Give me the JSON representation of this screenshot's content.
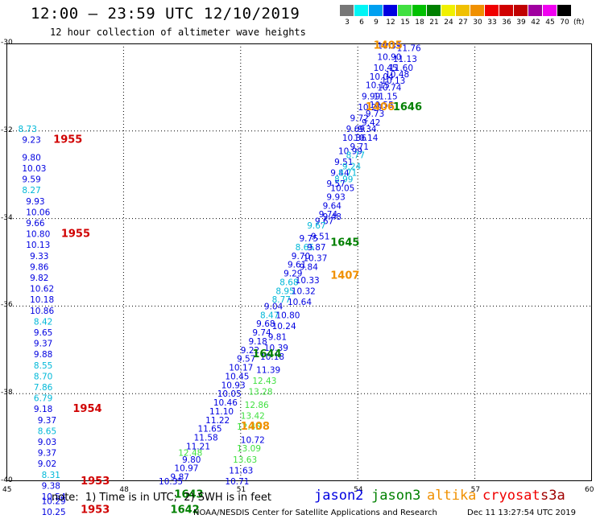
{
  "title": "12:00 – 23:59 UTC 12/10/2019",
  "subtitle": "12 hour collection of altimeter wave heights",
  "scale": {
    "labels": [
      "3",
      "6",
      "9",
      "12",
      "15",
      "18",
      "21",
      "24",
      "27",
      "30",
      "33",
      "36",
      "39",
      "42",
      "45",
      "70"
    ],
    "unit": "(ft)",
    "colors": [
      "#777777",
      "#00f5f5",
      "#00a0f0",
      "#0000e0",
      "#40e040",
      "#00c000",
      "#008000",
      "#f0f000",
      "#f0c000",
      "#f09000",
      "#f00000",
      "#d00000",
      "#c00000",
      "#a000a0",
      "#f000f0",
      "#000000"
    ]
  },
  "axes": {
    "y_labels": [
      "-30",
      "-32",
      "-34",
      "-36",
      "-38",
      "-40"
    ],
    "x_labels": [
      "45",
      "48",
      "51",
      "54",
      "57",
      "60"
    ]
  },
  "chart_data": {
    "type": "scatter",
    "xlim": [
      45,
      60
    ],
    "ylim": [
      -40,
      -30
    ],
    "grid": true,
    "points": [
      {
        "lon": 54.5,
        "lat": -30.05,
        "v": "10.39",
        "c": "b"
      },
      {
        "lon": 54.5,
        "lat": -30.3,
        "v": "10.90",
        "c": "b"
      },
      {
        "lon": 54.9,
        "lat": -30.35,
        "v": "11.13",
        "c": "b"
      },
      {
        "lon": 55.0,
        "lat": -30.1,
        "v": "11.76",
        "c": "b"
      },
      {
        "lon": 54.4,
        "lat": -30.55,
        "v": "10.45",
        "c": "b"
      },
      {
        "lon": 54.8,
        "lat": -30.55,
        "v": "11.60",
        "c": "b"
      },
      {
        "lon": 54.3,
        "lat": -30.75,
        "v": "10.04",
        "c": "b"
      },
      {
        "lon": 54.7,
        "lat": -30.7,
        "v": "10.48",
        "c": "b"
      },
      {
        "lon": 54.6,
        "lat": -30.85,
        "v": "10.13",
        "c": "b"
      },
      {
        "lon": 54.2,
        "lat": -30.95,
        "v": "10.15",
        "c": "b"
      },
      {
        "lon": 54.5,
        "lat": -31.0,
        "v": "10.74",
        "c": "b"
      },
      {
        "lon": 54.1,
        "lat": -31.2,
        "v": "9.99",
        "c": "b"
      },
      {
        "lon": 54.4,
        "lat": -31.2,
        "v": "11.15",
        "c": "b"
      },
      {
        "lon": 54.0,
        "lat": -31.45,
        "v": "10.29",
        "c": "b"
      },
      {
        "lon": 54.3,
        "lat": -31.4,
        "v": "10.55",
        "c": "b"
      },
      {
        "lon": 54.2,
        "lat": -31.6,
        "v": "9.73",
        "c": "b"
      },
      {
        "lon": 53.8,
        "lat": -31.7,
        "v": "9.72",
        "c": "b"
      },
      {
        "lon": 54.1,
        "lat": -31.8,
        "v": "9.42",
        "c": "b"
      },
      {
        "lon": 53.7,
        "lat": -31.95,
        "v": "9.69",
        "c": "b"
      },
      {
        "lon": 54.0,
        "lat": -31.95,
        "v": "9.34",
        "c": "b"
      },
      {
        "lon": 53.6,
        "lat": -32.15,
        "v": "10.36",
        "c": "b"
      },
      {
        "lon": 53.9,
        "lat": -32.15,
        "v": "10.14",
        "c": "b"
      },
      {
        "lon": 53.8,
        "lat": -32.35,
        "v": "9.71",
        "c": "b"
      },
      {
        "lon": 53.5,
        "lat": -32.45,
        "v": "10.99",
        "c": "b"
      },
      {
        "lon": 53.7,
        "lat": -32.55,
        "v": "8.77",
        "c": "c"
      },
      {
        "lon": 53.4,
        "lat": -32.7,
        "v": "9.51",
        "c": "b"
      },
      {
        "lon": 53.6,
        "lat": -32.8,
        "v": "9.24",
        "c": "c"
      },
      {
        "lon": 53.3,
        "lat": -32.95,
        "v": "9.44",
        "c": "b"
      },
      {
        "lon": 53.5,
        "lat": -32.95,
        "v": "8.71",
        "c": "c"
      },
      {
        "lon": 53.4,
        "lat": -33.1,
        "v": "8.99",
        "c": "c"
      },
      {
        "lon": 53.2,
        "lat": -33.2,
        "v": "9.57",
        "c": "b"
      },
      {
        "lon": 53.3,
        "lat": -33.3,
        "v": "10.05",
        "c": "b"
      },
      {
        "lon": 53.2,
        "lat": -33.5,
        "v": "9.93",
        "c": "b"
      },
      {
        "lon": 53.1,
        "lat": -33.7,
        "v": "9.64",
        "c": "b"
      },
      {
        "lon": 53.0,
        "lat": -33.9,
        "v": "9.74",
        "c": "b"
      },
      {
        "lon": 53.1,
        "lat": -33.95,
        "v": "9.48",
        "c": "b"
      },
      {
        "lon": 52.9,
        "lat": -34.05,
        "v": "9.67",
        "c": "b"
      },
      {
        "lon": 52.7,
        "lat": -34.15,
        "v": "9.67",
        "c": "c"
      },
      {
        "lon": 52.5,
        "lat": -34.45,
        "v": "9.75",
        "c": "b"
      },
      {
        "lon": 52.8,
        "lat": -34.4,
        "v": "9.51",
        "c": "b"
      },
      {
        "lon": 52.4,
        "lat": -34.65,
        "v": "8.65",
        "c": "c"
      },
      {
        "lon": 52.7,
        "lat": -34.65,
        "v": "9.87",
        "c": "b"
      },
      {
        "lon": 52.3,
        "lat": -34.85,
        "v": "9.70",
        "c": "b"
      },
      {
        "lon": 52.6,
        "lat": -34.9,
        "v": "10.37",
        "c": "b"
      },
      {
        "lon": 52.2,
        "lat": -35.05,
        "v": "9.61",
        "c": "b"
      },
      {
        "lon": 52.5,
        "lat": -35.1,
        "v": "9.84",
        "c": "b"
      },
      {
        "lon": 52.1,
        "lat": -35.25,
        "v": "9.29",
        "c": "b"
      },
      {
        "lon": 52.0,
        "lat": -35.45,
        "v": "8.68",
        "c": "c"
      },
      {
        "lon": 52.4,
        "lat": -35.4,
        "v": "10.33",
        "c": "b"
      },
      {
        "lon": 51.9,
        "lat": -35.65,
        "v": "8.95",
        "c": "c"
      },
      {
        "lon": 52.3,
        "lat": -35.65,
        "v": "10.32",
        "c": "b"
      },
      {
        "lon": 51.8,
        "lat": -35.85,
        "v": "8.77",
        "c": "c"
      },
      {
        "lon": 52.2,
        "lat": -35.9,
        "v": "10.64",
        "c": "b"
      },
      {
        "lon": 51.6,
        "lat": -36.0,
        "v": "9.04",
        "c": "b"
      },
      {
        "lon": 51.5,
        "lat": -36.2,
        "v": "8.47",
        "c": "c"
      },
      {
        "lon": 51.9,
        "lat": -36.2,
        "v": "10.80",
        "c": "b"
      },
      {
        "lon": 51.4,
        "lat": -36.4,
        "v": "9.68",
        "c": "b"
      },
      {
        "lon": 51.8,
        "lat": -36.45,
        "v": "10.24",
        "c": "b"
      },
      {
        "lon": 51.3,
        "lat": -36.6,
        "v": "9.74",
        "c": "b"
      },
      {
        "lon": 51.7,
        "lat": -36.7,
        "v": "9.81",
        "c": "b"
      },
      {
        "lon": 51.2,
        "lat": -36.8,
        "v": "9.18",
        "c": "b"
      },
      {
        "lon": 51.6,
        "lat": -36.95,
        "v": "10.39",
        "c": "b"
      },
      {
        "lon": 51.0,
        "lat": -37.0,
        "v": "9.22",
        "c": "b"
      },
      {
        "lon": 51.5,
        "lat": -37.15,
        "v": "10.18",
        "c": "b"
      },
      {
        "lon": 50.9,
        "lat": -37.2,
        "v": "9.57",
        "c": "b"
      },
      {
        "lon": 50.7,
        "lat": -37.4,
        "v": "10.17",
        "c": "b"
      },
      {
        "lon": 51.4,
        "lat": -37.45,
        "v": "11.39",
        "c": "b"
      },
      {
        "lon": 50.6,
        "lat": -37.6,
        "v": "10.45",
        "c": "b"
      },
      {
        "lon": 51.3,
        "lat": -37.7,
        "v": "12.43",
        "c": "g"
      },
      {
        "lon": 50.5,
        "lat": -37.8,
        "v": "10.93",
        "c": "b"
      },
      {
        "lon": 51.2,
        "lat": -37.95,
        "v": "13.28",
        "c": "g"
      },
      {
        "lon": 50.4,
        "lat": -38.0,
        "v": "10.05",
        "c": "b"
      },
      {
        "lon": 50.3,
        "lat": -38.2,
        "v": "10.46",
        "c": "b"
      },
      {
        "lon": 51.1,
        "lat": -38.25,
        "v": "12.86",
        "c": "g"
      },
      {
        "lon": 50.2,
        "lat": -38.4,
        "v": "11.10",
        "c": "b"
      },
      {
        "lon": 51.0,
        "lat": -38.5,
        "v": "13.42",
        "c": "g"
      },
      {
        "lon": 50.1,
        "lat": -38.6,
        "v": "11.22",
        "c": "b"
      },
      {
        "lon": 50.9,
        "lat": -38.75,
        "v": "12.45",
        "c": "g"
      },
      {
        "lon": 49.9,
        "lat": -38.8,
        "v": "11.65",
        "c": "b"
      },
      {
        "lon": 49.8,
        "lat": -39.0,
        "v": "11.58",
        "c": "b"
      },
      {
        "lon": 51.0,
        "lat": -39.05,
        "v": "10.72",
        "c": "b"
      },
      {
        "lon": 49.6,
        "lat": -39.2,
        "v": "11.21",
        "c": "b"
      },
      {
        "lon": 50.9,
        "lat": -39.25,
        "v": "13.09",
        "c": "g"
      },
      {
        "lon": 49.4,
        "lat": -39.35,
        "v": "12.48",
        "c": "g"
      },
      {
        "lon": 49.5,
        "lat": -39.5,
        "v": "9.80",
        "c": "b"
      },
      {
        "lon": 50.8,
        "lat": -39.5,
        "v": "13.63",
        "c": "g"
      },
      {
        "lon": 49.3,
        "lat": -39.7,
        "v": "10.97",
        "c": "b"
      },
      {
        "lon": 50.7,
        "lat": -39.75,
        "v": "11.63",
        "c": "b"
      },
      {
        "lon": 49.2,
        "lat": -39.9,
        "v": "9.87",
        "c": "b"
      },
      {
        "lon": 48.9,
        "lat": -40.0,
        "v": "10.35",
        "c": "b"
      },
      {
        "lon": 50.6,
        "lat": -40.0,
        "v": "10.71",
        "c": "b"
      },
      {
        "lon": 45.3,
        "lat": -31.95,
        "v": "8.73",
        "c": "c"
      },
      {
        "lon": 45.4,
        "lat": -32.2,
        "v": "9.23",
        "c": "b"
      },
      {
        "lon": 45.4,
        "lat": -32.6,
        "v": "9.80",
        "c": "b"
      },
      {
        "lon": 45.4,
        "lat": -32.85,
        "v": "10.03",
        "c": "b"
      },
      {
        "lon": 45.4,
        "lat": -33.1,
        "v": "9.59",
        "c": "b"
      },
      {
        "lon": 45.4,
        "lat": -33.35,
        "v": "8.27",
        "c": "c"
      },
      {
        "lon": 45.5,
        "lat": -33.6,
        "v": "9.93",
        "c": "b"
      },
      {
        "lon": 45.5,
        "lat": -33.85,
        "v": "10.06",
        "c": "b"
      },
      {
        "lon": 45.5,
        "lat": -34.1,
        "v": "9.66",
        "c": "b"
      },
      {
        "lon": 45.5,
        "lat": -34.35,
        "v": "10.80",
        "c": "b"
      },
      {
        "lon": 45.5,
        "lat": -34.6,
        "v": "10.13",
        "c": "b"
      },
      {
        "lon": 45.6,
        "lat": -34.85,
        "v": "9.33",
        "c": "b"
      },
      {
        "lon": 45.6,
        "lat": -35.1,
        "v": "9.86",
        "c": "b"
      },
      {
        "lon": 45.6,
        "lat": -35.35,
        "v": "9.82",
        "c": "b"
      },
      {
        "lon": 45.6,
        "lat": -35.6,
        "v": "10.62",
        "c": "b"
      },
      {
        "lon": 45.6,
        "lat": -35.85,
        "v": "10.18",
        "c": "b"
      },
      {
        "lon": 45.6,
        "lat": -36.1,
        "v": "10.86",
        "c": "b"
      },
      {
        "lon": 45.7,
        "lat": -36.35,
        "v": "8.42",
        "c": "c"
      },
      {
        "lon": 45.7,
        "lat": -36.6,
        "v": "9.65",
        "c": "b"
      },
      {
        "lon": 45.7,
        "lat": -36.85,
        "v": "9.37",
        "c": "b"
      },
      {
        "lon": 45.7,
        "lat": -37.1,
        "v": "9.88",
        "c": "b"
      },
      {
        "lon": 45.7,
        "lat": -37.35,
        "v": "8.55",
        "c": "c"
      },
      {
        "lon": 45.7,
        "lat": -37.6,
        "v": "8.70",
        "c": "c"
      },
      {
        "lon": 45.7,
        "lat": -37.85,
        "v": "7.86",
        "c": "c"
      },
      {
        "lon": 45.7,
        "lat": -38.1,
        "v": "6.79",
        "c": "c"
      },
      {
        "lon": 45.7,
        "lat": -38.35,
        "v": "9.18",
        "c": "b"
      },
      {
        "lon": 45.8,
        "lat": -38.6,
        "v": "9.37",
        "c": "b"
      },
      {
        "lon": 45.8,
        "lat": -38.85,
        "v": "8.65",
        "c": "c"
      },
      {
        "lon": 45.8,
        "lat": -39.1,
        "v": "9.03",
        "c": "b"
      },
      {
        "lon": 45.8,
        "lat": -39.35,
        "v": "9.37",
        "c": "b"
      },
      {
        "lon": 45.8,
        "lat": -39.6,
        "v": "9.02",
        "c": "b"
      },
      {
        "lon": 45.9,
        "lat": -39.85,
        "v": "8.31",
        "c": "c"
      },
      {
        "lon": 45.9,
        "lat": -40.1,
        "v": "9.38",
        "c": "b"
      },
      {
        "lon": 45.9,
        "lat": -40.35,
        "v": "10.54",
        "c": "b"
      },
      {
        "lon": 45.9,
        "lat": -40.45,
        "v": "10.29",
        "c": "b"
      },
      {
        "lon": 45.9,
        "lat": -40.7,
        "v": "10.25",
        "c": "b"
      }
    ],
    "time_tags": [
      {
        "lon": 54.4,
        "lat": -30.05,
        "v": "1405",
        "c": "#f09000"
      },
      {
        "lon": 54.2,
        "lat": -31.45,
        "v": "1406",
        "c": "#f09000"
      },
      {
        "lon": 54.9,
        "lat": -31.45,
        "v": "1646",
        "c": "#008000"
      },
      {
        "lon": 46.2,
        "lat": -32.2,
        "v": "1955",
        "c": "#d00000"
      },
      {
        "lon": 46.4,
        "lat": -34.35,
        "v": "1955",
        "c": "#d00000"
      },
      {
        "lon": 53.3,
        "lat": -34.55,
        "v": "1645",
        "c": "#008000"
      },
      {
        "lon": 53.3,
        "lat": -35.3,
        "v": "1407",
        "c": "#f09000"
      },
      {
        "lon": 51.3,
        "lat": -37.1,
        "v": "1644",
        "c": "#008000"
      },
      {
        "lon": 46.7,
        "lat": -38.35,
        "v": "1954",
        "c": "#d00000"
      },
      {
        "lon": 51.0,
        "lat": -38.75,
        "v": "1408",
        "c": "#f09000"
      },
      {
        "lon": 46.9,
        "lat": -40.0,
        "v": "1953",
        "c": "#d00000"
      },
      {
        "lon": 46.9,
        "lat": -40.65,
        "v": "1953",
        "c": "#d00000"
      },
      {
        "lon": 49.3,
        "lat": -40.3,
        "v": "1643",
        "c": "#008000"
      },
      {
        "lon": 49.2,
        "lat": -40.65,
        "v": "1642",
        "c": "#008000"
      }
    ]
  },
  "note": "note:  1) Time is in UTC;  2) SWH is in feet",
  "satellites": [
    {
      "name": "jason2",
      "color": "#0000e0"
    },
    {
      "name": "jason3",
      "color": "#008000"
    },
    {
      "name": "altika",
      "color": "#f09000"
    },
    {
      "name": "cryosat",
      "color": "#f00000"
    },
    {
      "name": "s3a",
      "color": "#a00000"
    }
  ],
  "footer_left": "NOAA/NESDIS Center for Satellite Applications and Research",
  "footer_right": "Dec 11 13:27:54 UTC 2019",
  "colors": {
    "b": "#0000e0",
    "c": "#00b8d8",
    "g": "#40e040"
  }
}
